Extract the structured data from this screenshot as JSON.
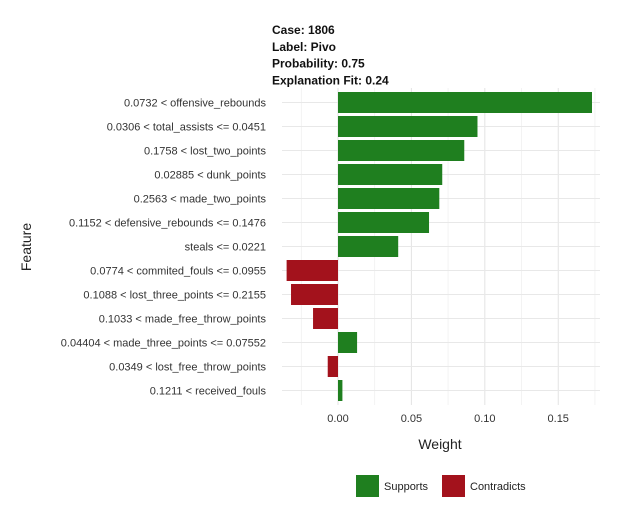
{
  "chart_data": {
    "type": "bar",
    "orientation": "horizontal",
    "header_lines": [
      "Case: 1806",
      "Label: Pivo",
      "Probability: 0.75",
      "Explanation Fit: 0.24"
    ],
    "xlabel": "Weight",
    "ylabel": "Feature",
    "xlim": [
      -0.025,
      0.175
    ],
    "x_ticks": [
      0.0,
      0.05,
      0.1,
      0.15
    ],
    "x_tick_labels": [
      "0.00",
      "0.05",
      "0.10",
      "0.15"
    ],
    "grid": true,
    "legend_position": "bottom",
    "legend": [
      {
        "label": "Supports",
        "color": "#1f7f1f"
      },
      {
        "label": "Contradicts",
        "color": "#a3121c"
      }
    ],
    "categories": [
      "0.0732 < offensive_rebounds",
      "0.0306 < total_assists <= 0.0451",
      "0.1758 < lost_two_points",
      "0.02885 < dunk_points",
      "0.2563 < made_two_points",
      "0.1152 < defensive_rebounds <= 0.1476",
      "steals <= 0.0221",
      "0.0774 < commited_fouls <= 0.0955",
      "0.1088 < lost_three_points <= 0.2155",
      "0.1033 < made_free_throw_points",
      "0.04404 < made_three_points <= 0.07552",
      "0.0349 < lost_free_throw_points",
      "0.1211 < received_fouls"
    ],
    "values": [
      0.173,
      0.095,
      0.086,
      0.071,
      0.069,
      0.062,
      0.041,
      -0.035,
      -0.032,
      -0.017,
      0.013,
      -0.007,
      0.003
    ]
  }
}
